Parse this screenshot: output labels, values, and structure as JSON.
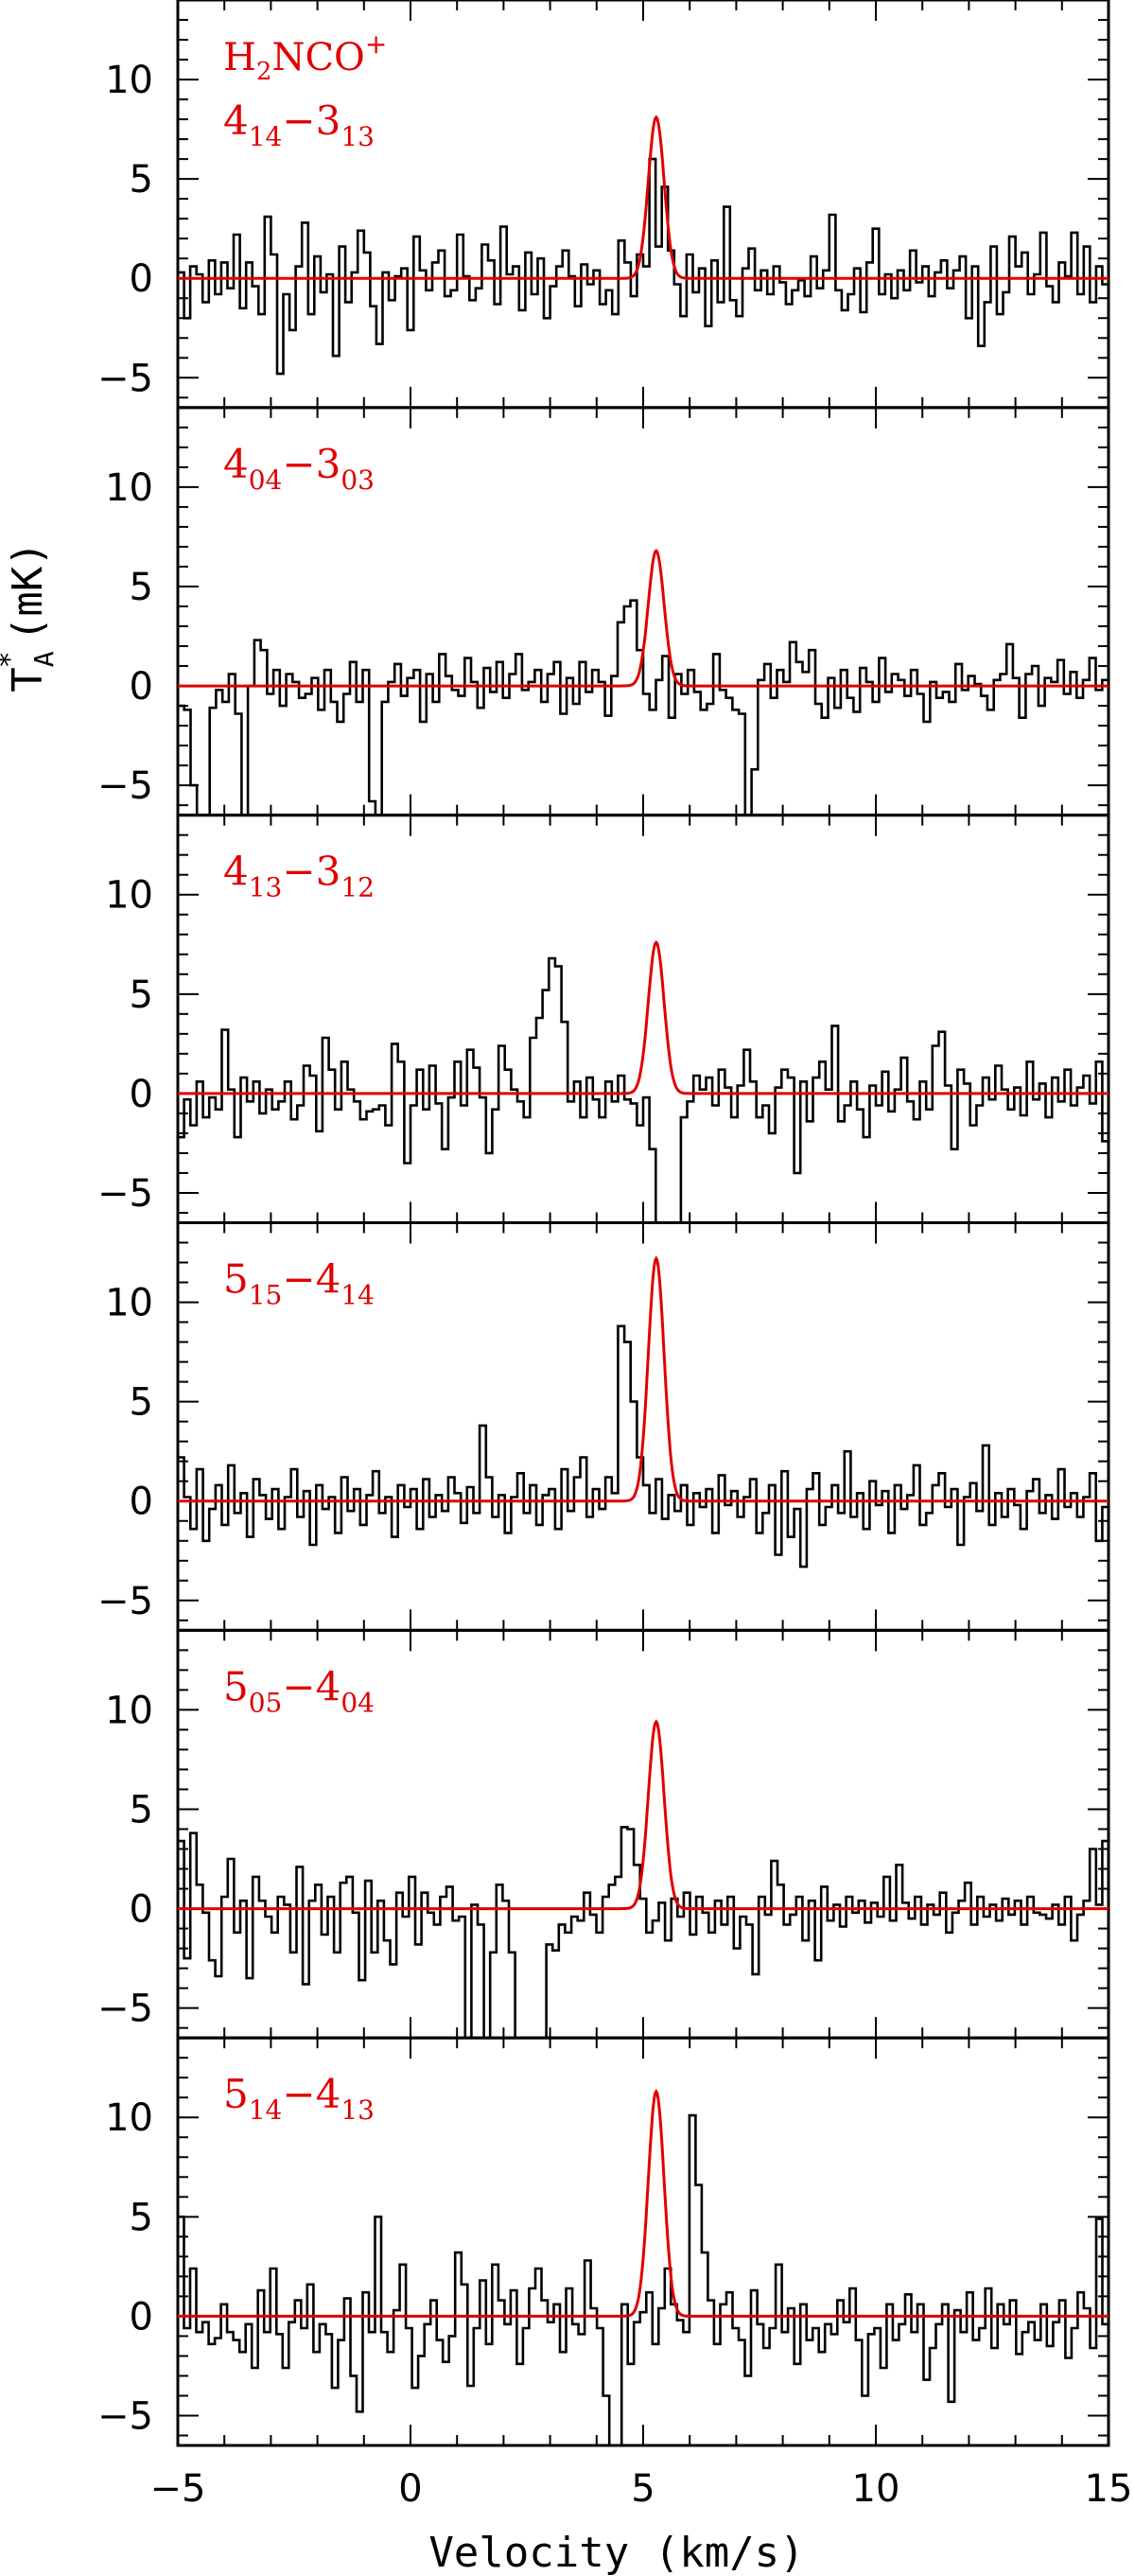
{
  "chart_data": {
    "type": "line",
    "xlabel": "Velocity (km/s)",
    "ylabel_main": "T",
    "ylabel_sup": "*",
    "ylabel_sub": "A",
    "ylabel_unit": "(mK)",
    "xlim": [
      -5,
      15
    ],
    "ylim": [
      -6.5,
      14
    ],
    "x_ticks": [
      -5,
      0,
      5,
      10,
      15
    ],
    "x_tick_labels": [
      "−5",
      "0",
      "5",
      "10",
      "15"
    ],
    "y_ticks": [
      -5,
      0,
      5,
      10
    ],
    "y_tick_labels": [
      "−5",
      "0",
      "5",
      "10"
    ],
    "colors": {
      "observed": "#000000",
      "model": "#e00000"
    },
    "panels": [
      {
        "molecule": "H2NCO+",
        "label_q": "4",
        "label_q_sub": "14",
        "label_l": "3",
        "label_l_sub": "13",
        "model_peak": 8.1,
        "observed": [
          0.3,
          -2,
          0.6,
          0.2,
          -1.2,
          0.9,
          -0.8,
          0.8,
          -0.5,
          2.2,
          -1.5,
          0.8,
          -0.4,
          -1.8,
          3.1,
          1.2,
          -4.8,
          -0.8,
          -2.6,
          0.6,
          2.8,
          -1.8,
          1.1,
          -0.7,
          0.2,
          -3.9,
          1.6,
          -1.2,
          0.3,
          2.4,
          1.3,
          -1.4,
          -3.3,
          0.3,
          -1.1,
          0.1,
          0.5,
          -2.6,
          2.1,
          0.4,
          -0.6,
          0.8,
          1.4,
          -0.9,
          -0.6,
          2.2,
          0.1,
          -1.1,
          -0.5,
          1.7,
          0.9,
          -1.3,
          2.6,
          0.2,
          0.6,
          -1.6,
          1.3,
          -0.8,
          1,
          -2,
          -0.4,
          0.6,
          1.4,
          0.1,
          -1.4,
          0.7,
          -0.3,
          0.4,
          -1.3,
          -0.6,
          -1.8,
          1.9,
          0.8,
          -0.9,
          1.2,
          0.6,
          6,
          1.6,
          4.6,
          1.4,
          -0.3,
          -1.9,
          1.2,
          -0.7,
          0.5,
          -2.4,
          0.9,
          -1.2,
          3.6,
          -1.1,
          -1.9,
          0.5,
          1.5,
          -0.6,
          0.4,
          -0.8,
          0.6,
          -0.2,
          -1.3,
          -0.6,
          -0.1,
          -0.9,
          1.1,
          -0.5,
          0.4,
          3.2,
          -0.6,
          -1.6,
          -0.8,
          0.5,
          -1.7,
          0.8,
          2.5,
          -0.8,
          0.2,
          -1,
          0.4,
          -0.6,
          1.4,
          -0.2,
          0.6,
          -0.9,
          0.3,
          0.9,
          -0.5,
          0.4,
          1.1,
          -2,
          0.6,
          -3.4,
          -1.2,
          1.6,
          -1.8,
          -0.7,
          2.1,
          0.6,
          1.3,
          -0.8,
          0.2,
          2.3,
          -0.4,
          -1.2,
          0.8,
          0.1,
          2.3,
          -0.8,
          1.6,
          -1.2,
          0.6,
          -0.3
        ]
      },
      {
        "molecule": "",
        "label_q": "4",
        "label_q_sub": "04",
        "label_l": "3",
        "label_l_sub": "03",
        "model_peak": 6.8,
        "observed": [
          -1,
          -1.2,
          -5,
          -7,
          -7,
          -1.1,
          -0.2,
          -0.8,
          0.6,
          -1.4,
          -6.6,
          0,
          2.3,
          1.8,
          -0.4,
          0.8,
          -1,
          0.6,
          0.2,
          -0.6,
          -0.4,
          0.4,
          -1.2,
          0.8,
          -0.8,
          -1.8,
          -0.4,
          1.2,
          -0.8,
          0.8,
          -5.8,
          -7,
          -0.8,
          0.2,
          1.1,
          -0.5,
          0.4,
          0.8,
          -1.8,
          0.6,
          -0.8,
          1.6,
          0.5,
          -0.2,
          -0.5,
          1.4,
          0.2,
          -1.1,
          0.9,
          -0.3,
          1.2,
          -0.6,
          0.6,
          1.6,
          -0.2,
          0.2,
          0.8,
          -0.8,
          0.6,
          1.2,
          -1.4,
          0.4,
          -0.9,
          1.2,
          -0.3,
          0.8,
          0.2,
          -1.5,
          0.5,
          3.2,
          4,
          4.3,
          1.8,
          -0.4,
          -1.2,
          0.3,
          1.5,
          -1.6,
          0.6,
          -0.4,
          0.8,
          -0.3,
          -1.2,
          -0.9,
          1.6,
          -0.2,
          -0.6,
          -1.2,
          -1.4,
          -7,
          -4.2,
          0.3,
          1.1,
          -0.6,
          0.8,
          0.2,
          2.2,
          1.2,
          0.7,
          1.8,
          -0.9,
          -1.6,
          0.4,
          -1.1,
          0.8,
          -0.6,
          -1.3,
          0.9,
          0.2,
          -0.8,
          1.4,
          -0.3,
          0.6,
          0.3,
          -0.5,
          0.8,
          -0.4,
          -1.8,
          0.2,
          -0.6,
          -0.3,
          -0.8,
          1.1,
          -0.2,
          0.5,
          0.1,
          -0.5,
          -1.2,
          0.3,
          0.6,
          2.1,
          0.4,
          -1.6,
          0.6,
          1,
          -1,
          0.4,
          0.2,
          1.3,
          -0.4,
          0.7,
          -0.6,
          0.3,
          1.4,
          -0.2,
          0.3
        ]
      },
      {
        "molecule": "",
        "label_q": "4",
        "label_q_sub": "13",
        "label_l": "3",
        "label_l_sub": "12",
        "model_peak": 7.6,
        "observed": [
          -2.2,
          -0.3,
          -1.6,
          0.6,
          -1.2,
          -0.2,
          -0.8,
          3.2,
          0.2,
          -2.2,
          0.8,
          -0.4,
          0.6,
          -1,
          0.2,
          -0.8,
          -0.4,
          0.6,
          -1.3,
          -0.6,
          1.4,
          0.9,
          -1.9,
          2.8,
          1.2,
          -0.8,
          1.6,
          0.2,
          -0.4,
          -1.3,
          -0.9,
          -0.8,
          -0.6,
          -1.6,
          2.5,
          1.6,
          -3.5,
          -0.6,
          1.2,
          -0.8,
          1.4,
          -0.5,
          -2.8,
          -0.2,
          1.6,
          -0.6,
          2.2,
          1.3,
          -0.2,
          -3,
          -0.8,
          2.4,
          1.2,
          0.2,
          -0.4,
          -1.2,
          2.8,
          3.8,
          5.2,
          6.8,
          6.4,
          3.6,
          -0.4,
          0.6,
          -1.2,
          0.8,
          -0.3,
          -1.2,
          0.6,
          -0.4,
          0.9,
          -0.3,
          -0.5,
          -1.6,
          -0.2,
          -2.8,
          -7,
          -7,
          -7,
          -7,
          -1.2,
          -0.4,
          0.9,
          0.2,
          0.8,
          -0.6,
          1.2,
          0.3,
          -1.2,
          0.4,
          2.2,
          0.6,
          -1.2,
          -0.6,
          -2,
          0.3,
          1.2,
          0.8,
          -4,
          0.6,
          -1.4,
          0.8,
          1.6,
          0.2,
          3.4,
          -1.4,
          -0.6,
          0.6,
          -0.8,
          -2.2,
          0.4,
          -0.6,
          1.1,
          -0.9,
          0.2,
          1.8,
          -0.4,
          -1.3,
          0.6,
          -0.8,
          2.4,
          3.1,
          0.4,
          -2.8,
          1.2,
          0.5,
          -1.6,
          -0.6,
          0.8,
          -0.3,
          1.4,
          0.2,
          -0.8,
          0.3,
          -1.1,
          1.6,
          -0.3,
          0.5,
          -1.2,
          0.8,
          -0.4,
          1.2,
          -0.6,
          0.3,
          0.9,
          -0.5,
          1.6,
          -2.4
        ]
      },
      {
        "molecule": "",
        "label_q": "5",
        "label_q_sub": "15",
        "label_l": "4",
        "label_l_sub": "14",
        "model_peak": 12.2,
        "observed": [
          2.2,
          0.2,
          -1.4,
          1.6,
          -2,
          -0.4,
          0.8,
          -1.2,
          1.8,
          -0.6,
          0.4,
          -1.8,
          1.1,
          0.3,
          -0.9,
          0.6,
          -1.4,
          0.2,
          1.6,
          -0.8,
          0.5,
          -2.2,
          0.8,
          -0.4,
          0.2,
          -1.6,
          1.2,
          -0.5,
          0.6,
          -1.2,
          0.3,
          1.5,
          -0.6,
          0.2,
          -1.8,
          0.8,
          -0.3,
          0.6,
          -1.4,
          1.1,
          -0.8,
          0.3,
          -0.5,
          1.2,
          0.4,
          -1.1,
          0.7,
          -0.6,
          3.8,
          1.2,
          -0.8,
          0.3,
          -1.6,
          0.2,
          1.4,
          -0.6,
          0.8,
          -1.2,
          0.3,
          0.6,
          -1.4,
          1.6,
          -0.5,
          1.2,
          2.2,
          -0.8,
          0.6,
          -0.4,
          1.2,
          0.4,
          8.8,
          8,
          5,
          2.2,
          0.8,
          -0.6,
          1.1,
          -0.9,
          0.3,
          -0.5,
          0.8,
          -1.2,
          0.4,
          -0.3,
          0.6,
          -1.6,
          1.3,
          -0.2,
          0.5,
          -0.8,
          0.2,
          1.1,
          -1.6,
          -0.6,
          0.8,
          -2.7,
          1.5,
          -1.8,
          -0.4,
          -3.3,
          0.6,
          1.4,
          -1.2,
          -0.3,
          0.8,
          -0.6,
          2.5,
          -0.8,
          0.4,
          -1.4,
          1,
          -0.2,
          0.5,
          -1.6,
          0.8,
          -0.4,
          0.3,
          1.8,
          -1.2,
          -0.6,
          0.8,
          1.4,
          -0.3,
          0.6,
          -2.2,
          0.2,
          0.9,
          -0.5,
          2.8,
          -1.2,
          0.4,
          -0.8,
          0.6,
          -0.2,
          -1.4,
          0.5,
          1.1,
          -0.6,
          0.3,
          -0.9,
          1.6,
          -0.3,
          0.4,
          -0.8,
          0.2,
          1.4,
          -2,
          -0.3
        ]
      },
      {
        "molecule": "",
        "label_q": "5",
        "label_q_sub": "05",
        "label_l": "4",
        "label_l_sub": "04",
        "model_peak": 9.4,
        "observed": [
          3.4,
          -2.5,
          3.8,
          1.2,
          -0.2,
          -2.6,
          -3.4,
          0.6,
          2.5,
          -1.2,
          0.4,
          -3.5,
          1.6,
          0.4,
          -0.4,
          -1.2,
          0.6,
          0.2,
          -2.2,
          2.1,
          -3.8,
          0.4,
          1.2,
          -1.3,
          0.6,
          -2.2,
          1.3,
          1.6,
          -0.2,
          -3.6,
          1.4,
          -2.2,
          0.4,
          -1.6,
          -2.8,
          0.8,
          -0.4,
          1.6,
          -1.8,
          0.8,
          -0.2,
          -0.8,
          0.6,
          1.1,
          -0.6,
          -0.4,
          -7,
          0.2,
          -0.8,
          -7,
          -2.2,
          1.2,
          0.4,
          -2.2,
          -7,
          -7,
          -7,
          -7,
          -7,
          -1.8,
          -2.1,
          -0.8,
          -1.2,
          -0.4,
          -0.6,
          0.8,
          -0.3,
          -1.2,
          0.6,
          1.2,
          1.6,
          4.1,
          4,
          2.2,
          0.5,
          -1.2,
          -0.6,
          0.3,
          -1.6,
          0.5,
          -0.4,
          0.8,
          -1.3,
          0.6,
          -0.2,
          -1.2,
          0.4,
          -0.8,
          0.6,
          -2,
          -0.4,
          -0.8,
          -3.3,
          0.6,
          -0.3,
          2.4,
          1.2,
          -0.8,
          -0.3,
          0.6,
          -1.6,
          0.4,
          -2.6,
          1.1,
          -0.6,
          0.2,
          -0.9,
          0.6,
          -0.2,
          0.4,
          -0.7,
          0.3,
          -0.4,
          1.6,
          -0.6,
          2.2,
          0.3,
          -0.5,
          0.6,
          -0.8,
          0.2,
          -0.3,
          0.8,
          -1.2,
          -0.2,
          0.4,
          1.3,
          -0.8,
          0.6,
          -0.4,
          0.2,
          -0.6,
          0.5,
          -0.3,
          0.4,
          -0.8,
          0.6,
          -0.2,
          -0.3,
          -0.5,
          0.2,
          -0.8,
          0.6,
          -1.6,
          -0.3,
          0.4,
          3,
          0.2,
          3.4
        ]
      },
      {
        "molecule": "",
        "label_q": "5",
        "label_q_sub": "14",
        "label_l": "4",
        "label_l_sub": "13",
        "model_peak": 11.3,
        "observed": [
          5,
          -0.6,
          2.4,
          -0.8,
          -0.3,
          -1.4,
          -1.1,
          0.6,
          -0.8,
          -1.2,
          -1.8,
          -0.4,
          -2.6,
          1.3,
          -0.8,
          2.4,
          -0.9,
          -2.6,
          -0.3,
          0.8,
          -0.6,
          1.6,
          -1.8,
          -0.4,
          -0.9,
          -3.6,
          -1.2,
          0.9,
          -3,
          -4.8,
          1.2,
          -0.8,
          5,
          -0.8,
          -1.8,
          0.3,
          2.6,
          -0.6,
          -3.6,
          -2,
          -0.4,
          0.8,
          -1.2,
          -2.3,
          -1,
          3.2,
          1.6,
          -3.5,
          -0.6,
          1.8,
          -1.4,
          2.6,
          0.8,
          -0.4,
          1.3,
          -2.4,
          -0.6,
          1.4,
          2.4,
          0.8,
          -0.3,
          0.6,
          -1.8,
          1.4,
          -0.4,
          -0.9,
          2.8,
          0.4,
          -0.6,
          -4,
          -7,
          -7,
          0.6,
          -2.4,
          -0.3,
          0.2,
          1.2,
          -1.4,
          0.4,
          2.4,
          0.6,
          -0.2,
          -0.8,
          10.1,
          6.6,
          3.2,
          0.8,
          -1.4,
          0.6,
          1.2,
          -0.6,
          -1.2,
          -3,
          1.3,
          -0.4,
          -1.6,
          -0.6,
          2.6,
          -0.8,
          0.4,
          -2.4,
          0.6,
          -1.2,
          -0.6,
          -1.8,
          -0.4,
          -0.9,
          0.8,
          -0.3,
          1.4,
          -1.2,
          -4,
          -0.9,
          -0.6,
          -2.6,
          0.6,
          -1.2,
          -0.4,
          1.1,
          -0.8,
          0.6,
          -3.2,
          -1.6,
          -0.4,
          0.6,
          -4.3,
          0.3,
          -0.8,
          1.2,
          -1.2,
          -0.6,
          1.4,
          -1.6,
          0.6,
          -0.4,
          0.8,
          -1.9,
          -0.8,
          -0.3,
          -1.2,
          0.6,
          -1.5,
          -0.3,
          0.8,
          -2.1,
          -0.6,
          1.2,
          0.4,
          -1.6,
          4.9,
          -0.4
        ]
      }
    ]
  }
}
